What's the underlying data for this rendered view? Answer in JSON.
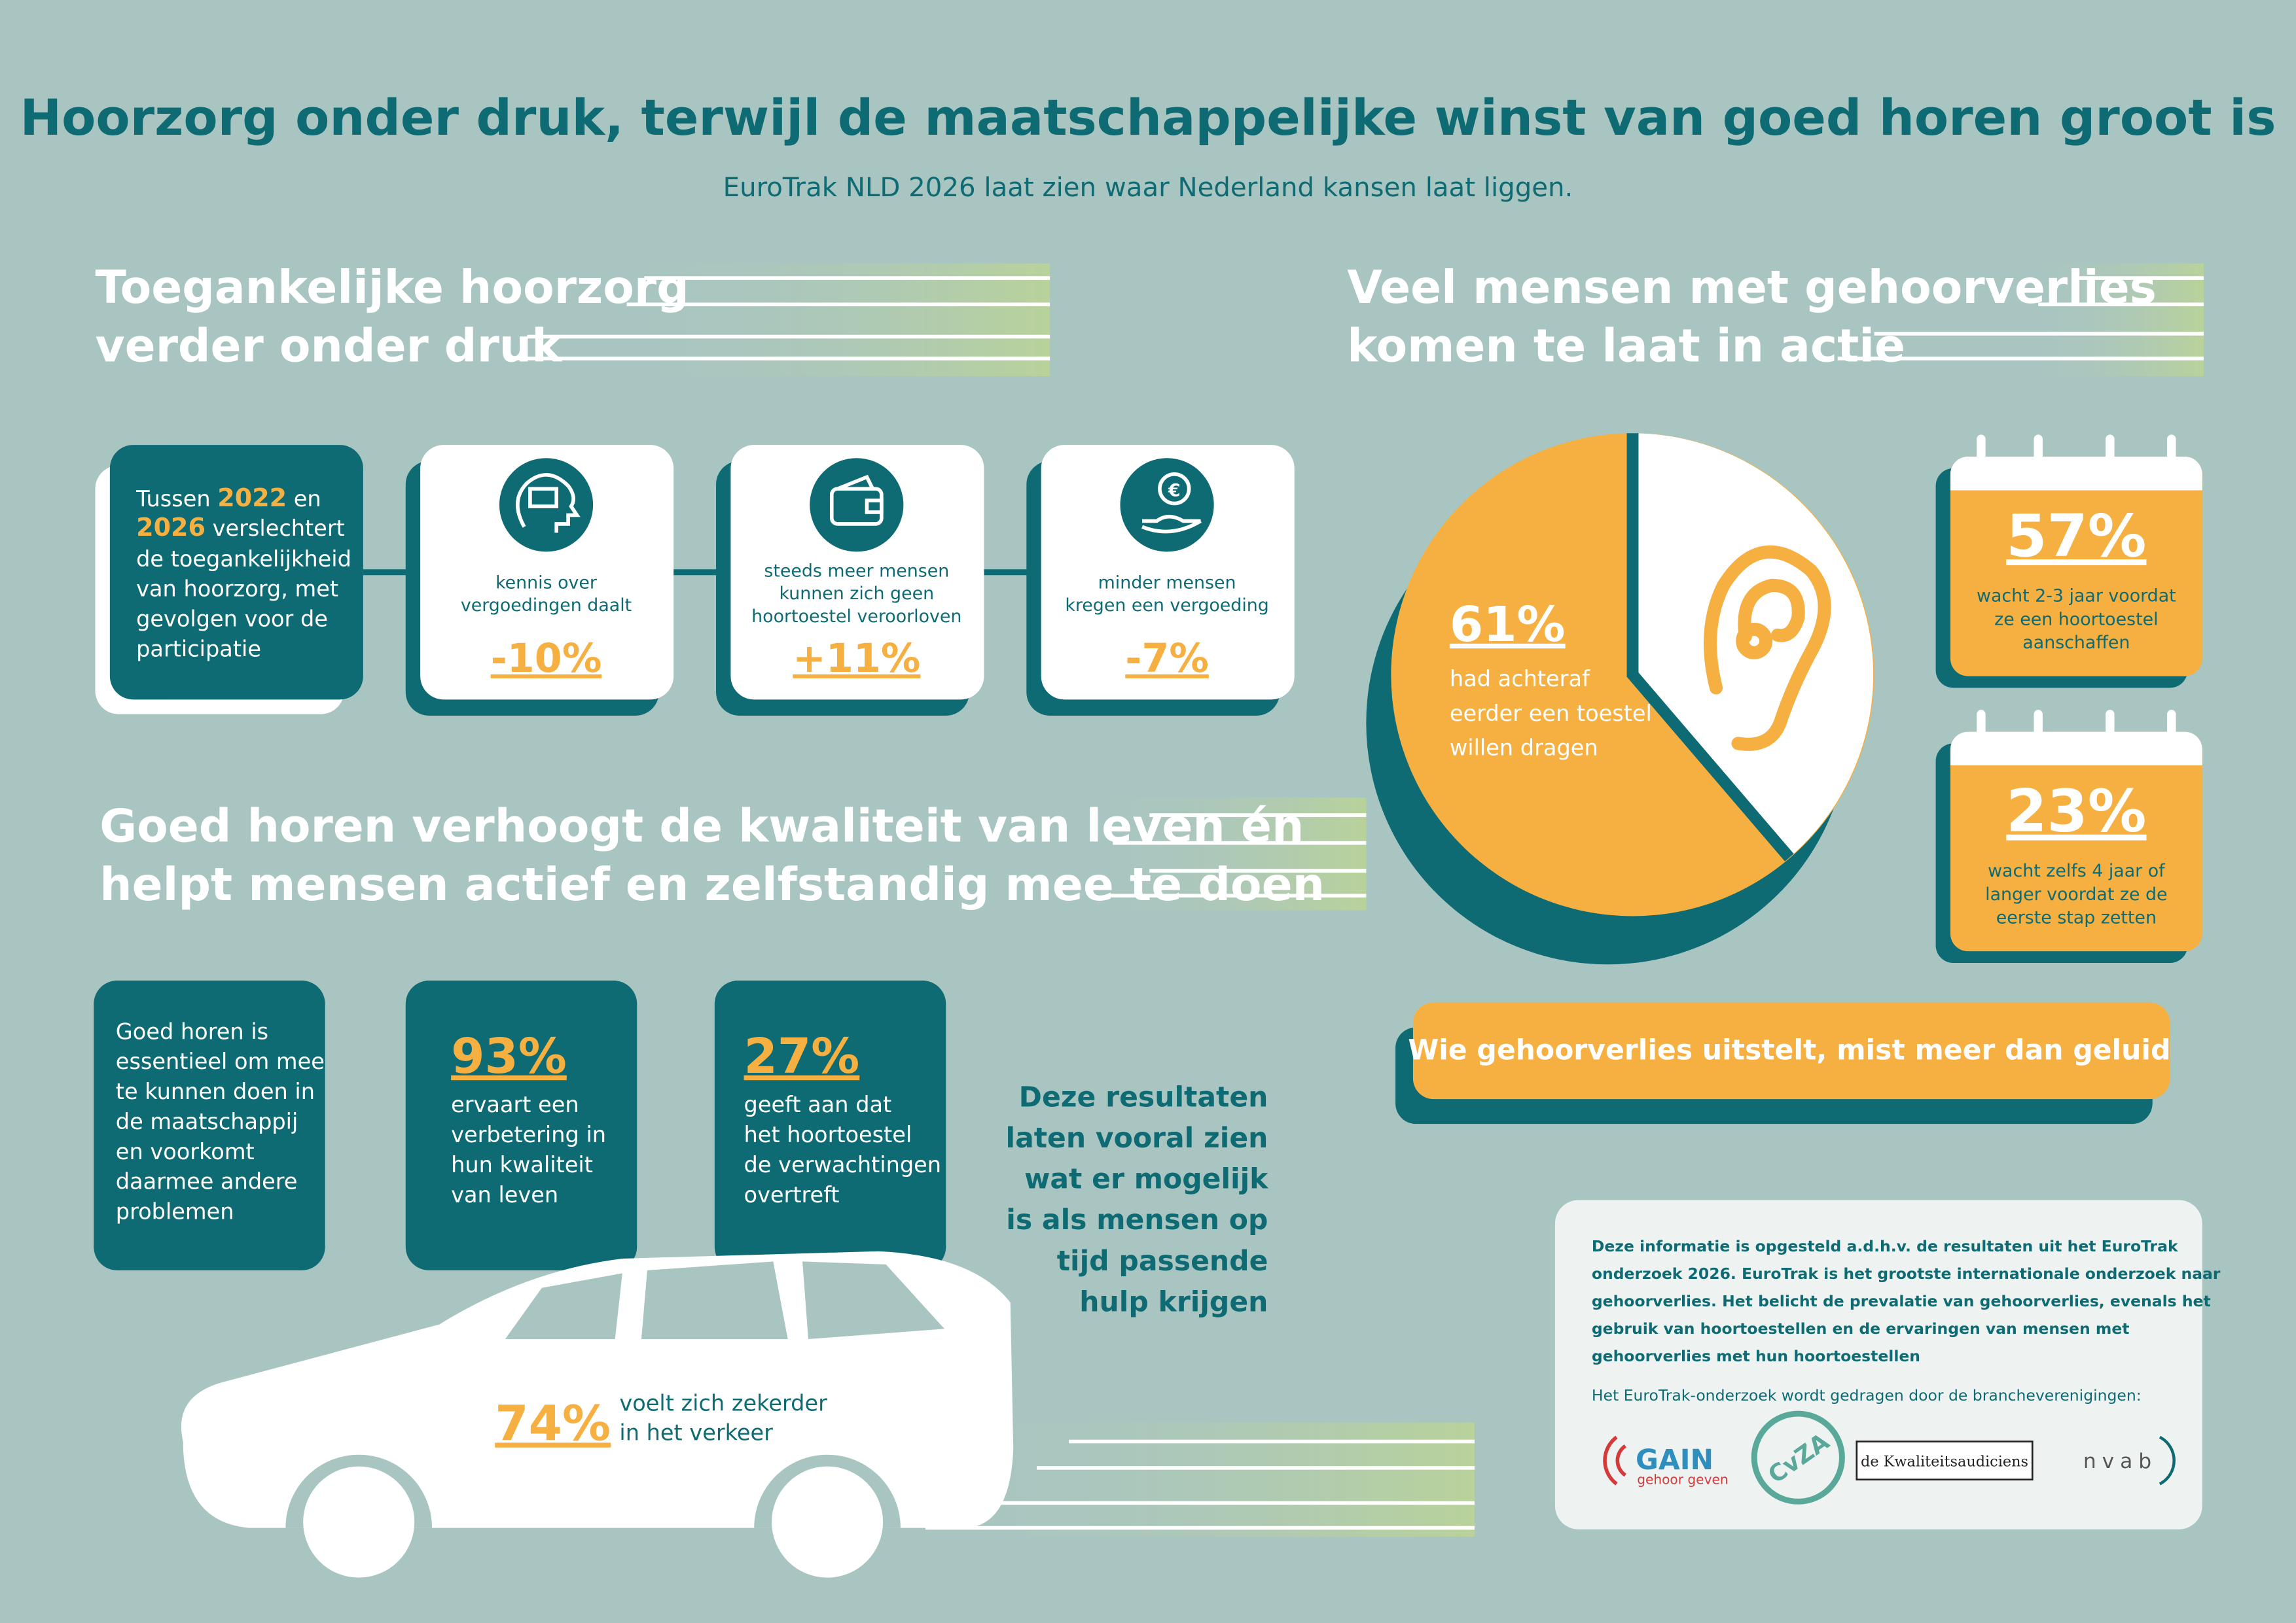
{
  "title": "Hoorzorg onder druk, terwijl de maatschappelijke winst van goed horen groot is",
  "subtitle": "EuroTrak NLD 2026 laat zien waar Nederland kansen laat liggen.",
  "access": {
    "heading": [
      "Toegankelijke hoorzorg",
      "verder onder druk"
    ],
    "intro": {
      "first": [
        "Tussen",
        "2022",
        "en"
      ],
      "second": [
        "2026",
        "verslechtert"
      ],
      "lines": [
        "de toegankelijkheid",
        "van hoorzorg, met",
        "gevolgen voor de",
        "participatie"
      ]
    },
    "cards": [
      {
        "lines": [
          "kennis over",
          "vergoedingen daalt"
        ],
        "value": "-10%"
      },
      {
        "lines": [
          "steeds meer mensen",
          "kunnen zich geen",
          "hoortoestel veroorloven"
        ],
        "value": "+11%"
      },
      {
        "lines": [
          "minder mensen",
          "kregen een vergoeding"
        ],
        "value": "-7%"
      }
    ]
  },
  "life": {
    "heading": [
      "Goed horen verhoogt de kwaliteit van leven én",
      "helpt mensen actief en zelfstandig mee te doen"
    ],
    "intro": [
      "Goed horen is",
      "essentieel om mee",
      "te kunnen doen in",
      "de maatschappij",
      "en voorkomt",
      "daarmee andere",
      "problemen"
    ],
    "stats": [
      {
        "value": "93%",
        "lines": [
          "ervaart een",
          "verbetering in",
          "hun kwaliteit",
          "van leven"
        ]
      },
      {
        "value": "27%",
        "lines": [
          "geeft aan dat",
          "het hoortoestel",
          "de verwachtingen",
          "overtreft"
        ]
      }
    ],
    "car": {
      "value": "74%",
      "lines": [
        "voelt zich zekerder",
        "in het verkeer"
      ]
    },
    "conclusion": [
      "Deze resultaten",
      "laten vooral zien",
      "wat er mogelijk",
      "is als mensen op",
      "tijd passende",
      "hulp krijgen"
    ]
  },
  "late": {
    "heading": [
      "Veel mensen met gehoorverlies",
      "komen te laat in actie"
    ],
    "pie": {
      "value": "61%",
      "lines": [
        "had achteraf",
        "eerder een toestel",
        "willen dragen"
      ]
    },
    "calendars": [
      {
        "value": "57%",
        "lines": [
          "wacht 2-3 jaar voordat",
          "ze een hoortoestel",
          "aanschaffen"
        ]
      },
      {
        "value": "23%",
        "lines": [
          "wacht zelfs 4 jaar of",
          "langer voordat ze de",
          "eerste stap zetten"
        ]
      }
    ],
    "banner": "Wie gehoorverlies uitstelt, mist meer dan geluid"
  },
  "info": {
    "lines": [
      "Deze informatie is opgesteld a.d.h.v. de resultaten uit het EuroTrak",
      "onderzoek 2026. EuroTrak is het grootste internationale onderzoek naar",
      "gehoorverlies. Het belicht de prevalatie van gehoorverlies, evenals het",
      "gebruik van hoortoestellen en de ervaringen van mensen met",
      "gehoorverlies met hun hoortoestellen"
    ],
    "sponsors": "Het EuroTrak-onderzoek wordt gedragen door de brancheverenigingen:",
    "logos": {
      "gain": "GAIN",
      "gain_sub": "gehoor geven",
      "cvza": "CvZA",
      "ka": "de Kwaliteitsaudiciens",
      "nvab": "nvab"
    }
  }
}
